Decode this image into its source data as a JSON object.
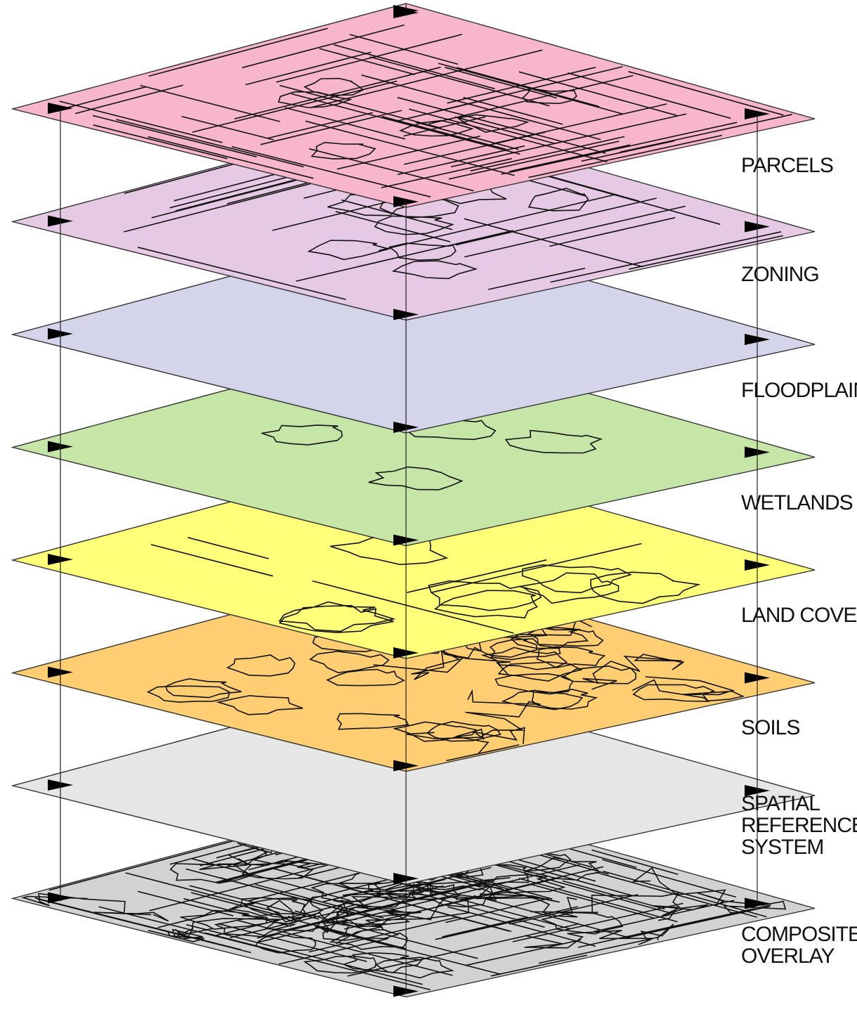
{
  "layers": [
    {
      "id": "parcels",
      "label_lines": [
        "PARCELS"
      ],
      "color": "#f7b6cc"
    },
    {
      "id": "zoning",
      "label_lines": [
        "ZONING"
      ],
      "color": "#e6c9e4"
    },
    {
      "id": "floodplain",
      "label_lines": [
        "FLOODPLAIN"
      ],
      "color": "#d4d4ea"
    },
    {
      "id": "wetlands",
      "label_lines": [
        "WETLANDS"
      ],
      "color": "#c6e6a8"
    },
    {
      "id": "land-cover",
      "label_lines": [
        "LAND COVER"
      ],
      "color": "#ffff7a"
    },
    {
      "id": "soils",
      "label_lines": [
        "SOILS"
      ],
      "color": "#ffcd72"
    },
    {
      "id": "spatial-reference-system",
      "label_lines": [
        "SPATIAL",
        "REFERENCE",
        "SYSTEM"
      ],
      "color": "#e6e6e6"
    },
    {
      "id": "composite-overlay",
      "label_lines": [
        "COMPOSITE",
        "OVERLAY"
      ],
      "color": "#d2d2d2"
    }
  ]
}
